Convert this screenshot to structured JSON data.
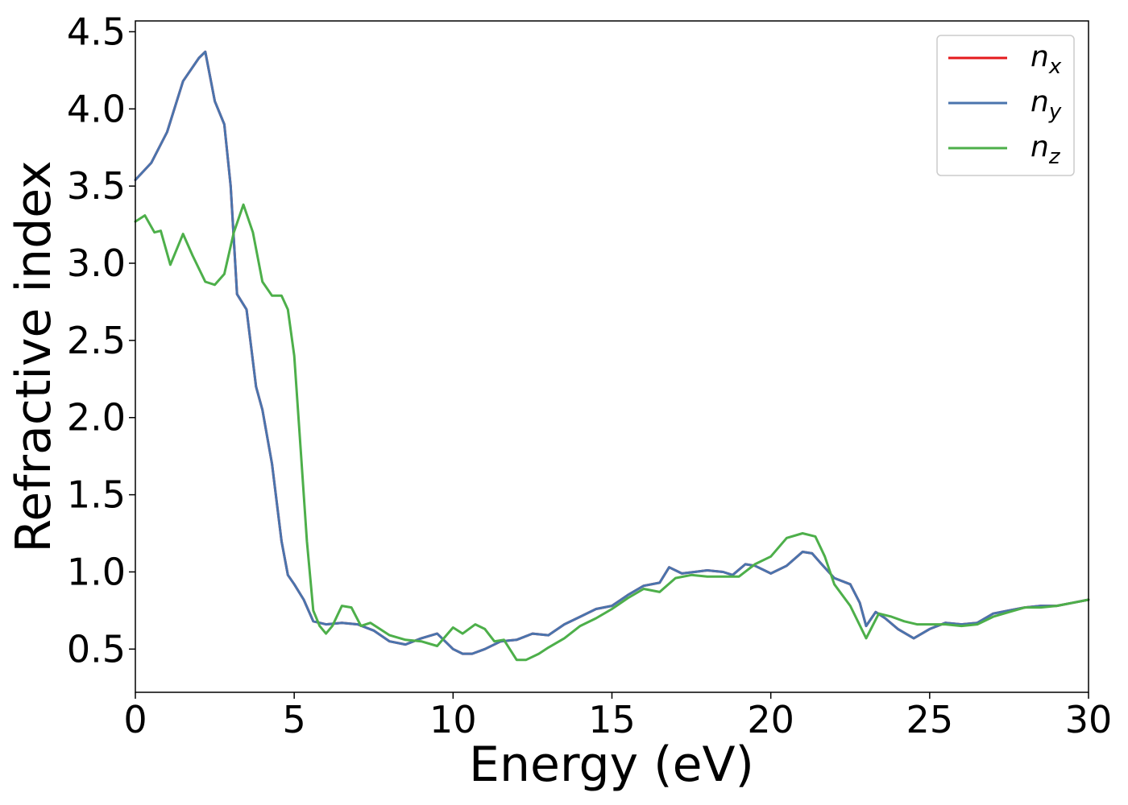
{
  "chart_data": {
    "type": "line",
    "xlabel": "Energy (eV)",
    "ylabel": "Refractive index",
    "xlim": [
      0,
      30
    ],
    "ylim": [
      0.22,
      4.57
    ],
    "xticks": [
      0,
      5,
      10,
      15,
      20,
      25,
      30
    ],
    "xtick_labels": [
      "0",
      "5",
      "10",
      "15",
      "20",
      "25",
      "30"
    ],
    "yticks": [
      0.5,
      1.0,
      1.5,
      2.0,
      2.5,
      3.0,
      3.5,
      4.0,
      4.5
    ],
    "ytick_labels": [
      "0.5",
      "1.0",
      "1.5",
      "2.0",
      "2.5",
      "3.0",
      "3.5",
      "4.0",
      "4.5"
    ],
    "grid": false,
    "legend_position": "top-right",
    "series": [
      {
        "name": "n_x",
        "label_base": "n",
        "label_sub": "x",
        "color": "#e41a1c",
        "x": [
          0,
          0.5,
          1.0,
          1.5,
          2.0,
          2.2,
          2.5,
          2.8,
          3.0,
          3.2,
          3.5,
          3.8,
          4.0,
          4.3,
          4.6,
          4.8,
          5.0,
          5.3,
          5.6,
          6.0,
          6.5,
          7.0,
          7.5,
          8.0,
          8.5,
          9.0,
          9.5,
          10.0,
          10.3,
          10.6,
          11.0,
          11.5,
          12.0,
          12.5,
          13.0,
          13.5,
          14.0,
          14.5,
          15.0,
          15.5,
          16.0,
          16.5,
          16.8,
          17.2,
          17.6,
          18.0,
          18.5,
          18.8,
          19.2,
          19.5,
          20.0,
          20.5,
          21.0,
          21.3,
          21.6,
          22.0,
          22.5,
          22.8,
          23.0,
          23.3,
          23.6,
          24.0,
          24.5,
          25.0,
          25.5,
          26.0,
          26.5,
          27.0,
          27.5,
          28.0,
          28.5,
          29.0,
          29.5,
          30.0
        ],
        "y": [
          3.54,
          3.65,
          3.85,
          4.18,
          4.33,
          4.37,
          4.05,
          3.9,
          3.5,
          2.8,
          2.7,
          2.2,
          2.05,
          1.7,
          1.2,
          0.98,
          0.92,
          0.82,
          0.68,
          0.66,
          0.67,
          0.66,
          0.62,
          0.55,
          0.53,
          0.57,
          0.6,
          0.5,
          0.47,
          0.47,
          0.5,
          0.55,
          0.56,
          0.6,
          0.59,
          0.66,
          0.71,
          0.76,
          0.78,
          0.85,
          0.91,
          0.93,
          1.03,
          0.99,
          1.0,
          1.01,
          1.0,
          0.98,
          1.05,
          1.04,
          0.99,
          1.04,
          1.13,
          1.12,
          1.05,
          0.96,
          0.92,
          0.8,
          0.65,
          0.74,
          0.7,
          0.63,
          0.57,
          0.63,
          0.67,
          0.66,
          0.67,
          0.73,
          0.75,
          0.77,
          0.78,
          0.78,
          0.8,
          0.82
        ]
      },
      {
        "name": "n_y",
        "label_base": "n",
        "label_sub": "y",
        "color": "#4a74ad",
        "x": [
          0,
          0.5,
          1.0,
          1.5,
          2.0,
          2.2,
          2.5,
          2.8,
          3.0,
          3.2,
          3.5,
          3.8,
          4.0,
          4.3,
          4.6,
          4.8,
          5.0,
          5.3,
          5.6,
          6.0,
          6.5,
          7.0,
          7.5,
          8.0,
          8.5,
          9.0,
          9.5,
          10.0,
          10.3,
          10.6,
          11.0,
          11.5,
          12.0,
          12.5,
          13.0,
          13.5,
          14.0,
          14.5,
          15.0,
          15.5,
          16.0,
          16.5,
          16.8,
          17.2,
          17.6,
          18.0,
          18.5,
          18.8,
          19.2,
          19.5,
          20.0,
          20.5,
          21.0,
          21.3,
          21.6,
          22.0,
          22.5,
          22.8,
          23.0,
          23.3,
          23.6,
          24.0,
          24.5,
          25.0,
          25.5,
          26.0,
          26.5,
          27.0,
          27.5,
          28.0,
          28.5,
          29.0,
          29.5,
          30.0
        ],
        "y": [
          3.54,
          3.65,
          3.85,
          4.18,
          4.33,
          4.37,
          4.05,
          3.9,
          3.5,
          2.8,
          2.7,
          2.2,
          2.05,
          1.7,
          1.2,
          0.98,
          0.92,
          0.82,
          0.68,
          0.66,
          0.67,
          0.66,
          0.62,
          0.55,
          0.53,
          0.57,
          0.6,
          0.5,
          0.47,
          0.47,
          0.5,
          0.55,
          0.56,
          0.6,
          0.59,
          0.66,
          0.71,
          0.76,
          0.78,
          0.85,
          0.91,
          0.93,
          1.03,
          0.99,
          1.0,
          1.01,
          1.0,
          0.98,
          1.05,
          1.04,
          0.99,
          1.04,
          1.13,
          1.12,
          1.05,
          0.96,
          0.92,
          0.8,
          0.65,
          0.74,
          0.7,
          0.63,
          0.57,
          0.63,
          0.67,
          0.66,
          0.67,
          0.73,
          0.75,
          0.77,
          0.78,
          0.78,
          0.8,
          0.82
        ]
      },
      {
        "name": "n_z",
        "label_base": "n",
        "label_sub": "z",
        "color": "#4daf4a",
        "x": [
          0,
          0.3,
          0.6,
          0.8,
          1.1,
          1.5,
          1.8,
          2.2,
          2.5,
          2.8,
          3.1,
          3.4,
          3.7,
          4.0,
          4.3,
          4.6,
          4.8,
          5.0,
          5.2,
          5.4,
          5.6,
          5.8,
          6.0,
          6.2,
          6.5,
          6.8,
          7.1,
          7.4,
          7.7,
          8.0,
          8.5,
          9.0,
          9.5,
          10.0,
          10.3,
          10.7,
          11.0,
          11.3,
          11.6,
          12.0,
          12.3,
          12.7,
          13.0,
          13.5,
          14.0,
          14.5,
          15.0,
          15.5,
          16.0,
          16.5,
          17.0,
          17.5,
          18.0,
          18.5,
          19.0,
          19.5,
          20.0,
          20.5,
          21.0,
          21.4,
          21.7,
          22.0,
          22.5,
          23.0,
          23.4,
          23.8,
          24.2,
          24.6,
          25.0,
          25.5,
          26.0,
          26.5,
          27.0,
          27.5,
          28.0,
          28.5,
          29.0,
          29.5,
          30.0
        ],
        "y": [
          3.27,
          3.31,
          3.2,
          3.21,
          2.99,
          3.19,
          3.05,
          2.88,
          2.86,
          2.93,
          3.2,
          3.38,
          3.2,
          2.88,
          2.79,
          2.79,
          2.7,
          2.4,
          1.8,
          1.2,
          0.75,
          0.65,
          0.6,
          0.65,
          0.78,
          0.77,
          0.65,
          0.67,
          0.63,
          0.59,
          0.56,
          0.55,
          0.52,
          0.64,
          0.6,
          0.66,
          0.63,
          0.55,
          0.56,
          0.43,
          0.43,
          0.47,
          0.51,
          0.57,
          0.65,
          0.7,
          0.76,
          0.83,
          0.89,
          0.87,
          0.96,
          0.98,
          0.97,
          0.97,
          0.97,
          1.05,
          1.1,
          1.22,
          1.25,
          1.23,
          1.1,
          0.92,
          0.78,
          0.57,
          0.73,
          0.71,
          0.68,
          0.66,
          0.66,
          0.66,
          0.65,
          0.66,
          0.71,
          0.74,
          0.77,
          0.77,
          0.78,
          0.8,
          0.82
        ]
      }
    ]
  }
}
